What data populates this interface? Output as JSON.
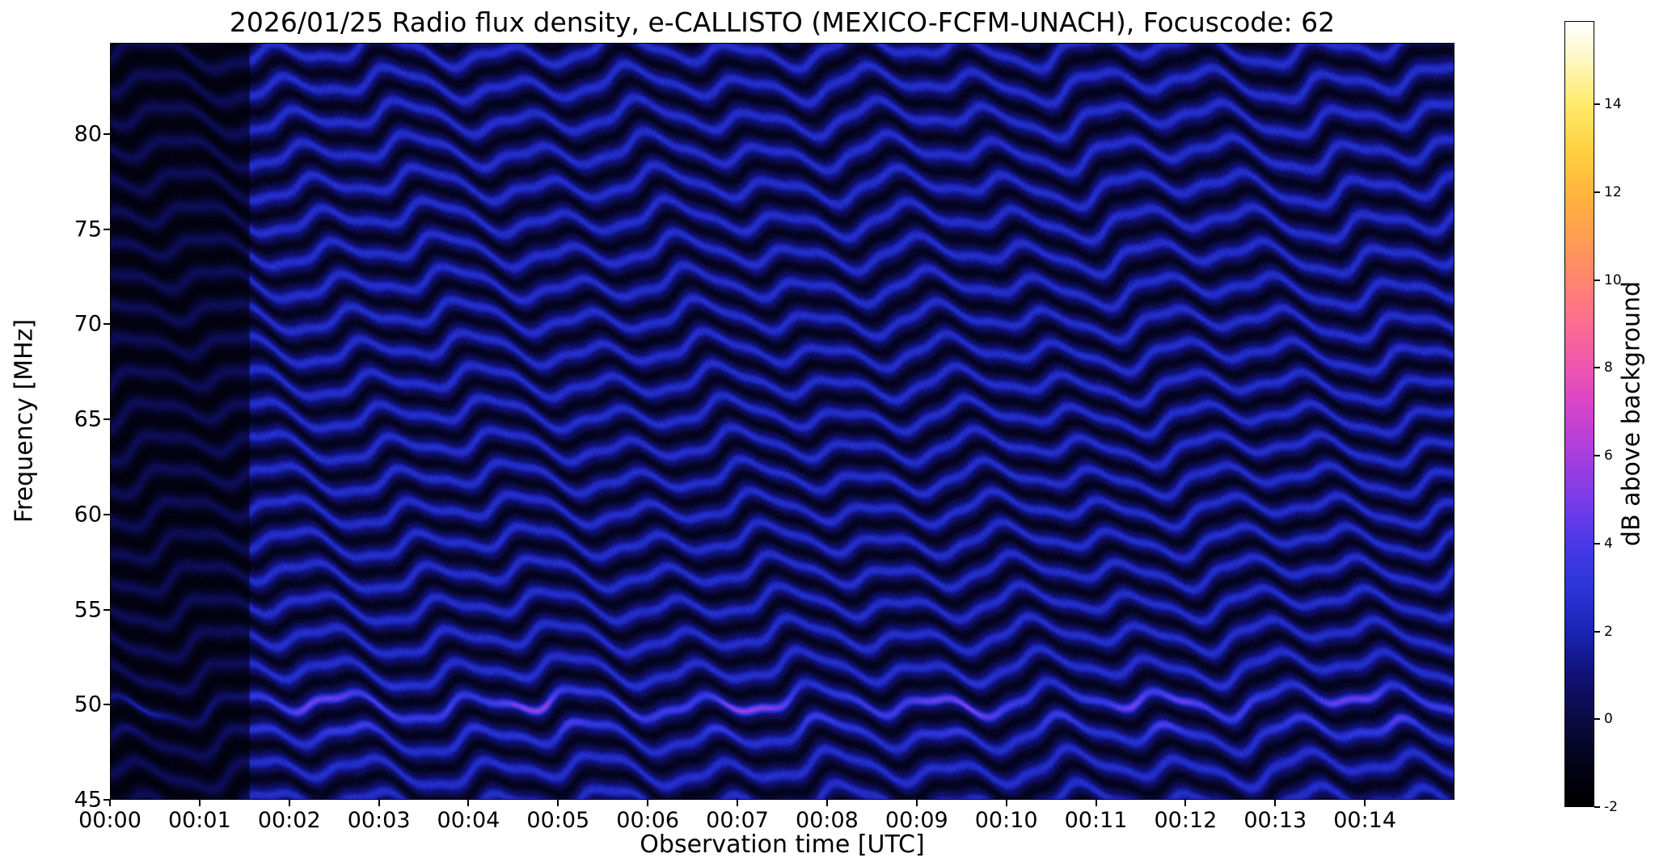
{
  "chart_data": {
    "type": "heatmap",
    "title": "2026/01/25  Radio flux density, e-CALLISTO (MEXICO-FCFM-UNACH), Focuscode: 62",
    "xlabel": "Observation time [UTC]",
    "ylabel": "Frequency [MHz]",
    "x_tick_labels": [
      "00:00",
      "00:01",
      "00:02",
      "00:03",
      "00:04",
      "00:05",
      "00:06",
      "00:07",
      "00:08",
      "00:09",
      "00:10",
      "00:11",
      "00:12",
      "00:13",
      "00:14"
    ],
    "x_range_minutes": [
      0,
      15
    ],
    "y_ticks": [
      45,
      50,
      55,
      60,
      65,
      70,
      75,
      80
    ],
    "y_range_mhz": [
      45,
      84.8
    ],
    "colorbar": {
      "label": "dB above background",
      "ticks": [
        -2,
        0,
        2,
        4,
        6,
        8,
        10,
        12,
        14
      ],
      "range": [
        -2,
        15.9
      ],
      "colormap_stops": [
        [
          -2,
          "#000000"
        ],
        [
          -1,
          "#03031a"
        ],
        [
          0,
          "#0b0b45"
        ],
        [
          1,
          "#111178"
        ],
        [
          2,
          "#1a25b5"
        ],
        [
          3,
          "#2c35d8"
        ],
        [
          4,
          "#4a38e8"
        ],
        [
          5,
          "#7a3ce8"
        ],
        [
          6,
          "#a83ee0"
        ],
        [
          7,
          "#d142cc"
        ],
        [
          8,
          "#ef55b0"
        ],
        [
          9,
          "#fb6c93"
        ],
        [
          10,
          "#ff8570"
        ],
        [
          11,
          "#ff9d52"
        ],
        [
          12,
          "#ffb53c"
        ],
        [
          13,
          "#ffd142"
        ],
        [
          14,
          "#ffe969"
        ],
        [
          15,
          "#fff7bd"
        ],
        [
          15.9,
          "#ffffff"
        ]
      ]
    },
    "pattern": {
      "description": "Dense wavy horizontal interference-ripple bands across all frequencies; dark blue background with brighter blue band crests, near-black troughs, faint magenta enhancement near 49-50 MHz, and a darker column during the first ~1.5 minutes of observation.",
      "band_spacing_mhz": 1.72,
      "ripple_wavelength_min": [
        1.3,
        2.9,
        0.55
      ],
      "ripple_amplitude_mhz": [
        0.55,
        0.35,
        0.18
      ],
      "dark_region_end_min": 1.55,
      "dark_region_factor": 0.52,
      "pink_band_center_mhz": 49.7,
      "background_db": 0.55,
      "crest_db": 2.6,
      "trough_db": -0.9
    }
  }
}
